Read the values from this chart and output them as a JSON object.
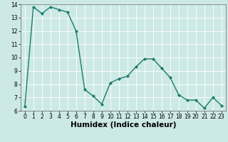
{
  "x": [
    0,
    1,
    2,
    3,
    4,
    5,
    6,
    7,
    8,
    9,
    10,
    11,
    12,
    13,
    14,
    15,
    16,
    17,
    18,
    19,
    20,
    21,
    22,
    23
  ],
  "y": [
    6.3,
    13.8,
    13.3,
    13.8,
    13.6,
    13.4,
    12.0,
    7.6,
    7.1,
    6.5,
    8.1,
    8.4,
    8.6,
    9.3,
    9.9,
    9.9,
    9.2,
    8.5,
    7.2,
    6.8,
    6.8,
    6.2,
    7.0,
    6.4
  ],
  "line_color": "#1a7a6e",
  "marker": "D",
  "marker_size": 2,
  "line_width": 1.0,
  "xlabel": "Humidex (Indice chaleur)",
  "xlim": [
    -0.5,
    23.5
  ],
  "ylim": [
    6,
    14
  ],
  "yticks": [
    6,
    7,
    8,
    9,
    10,
    11,
    12,
    13,
    14
  ],
  "xticks": [
    0,
    1,
    2,
    3,
    4,
    5,
    6,
    7,
    8,
    9,
    10,
    11,
    12,
    13,
    14,
    15,
    16,
    17,
    18,
    19,
    20,
    21,
    22,
    23
  ],
  "background_color": "#cce9e5",
  "grid_color": "#ffffff",
  "tick_label_fontsize": 5.5,
  "xlabel_fontsize": 7.5,
  "spine_color": "#666666"
}
